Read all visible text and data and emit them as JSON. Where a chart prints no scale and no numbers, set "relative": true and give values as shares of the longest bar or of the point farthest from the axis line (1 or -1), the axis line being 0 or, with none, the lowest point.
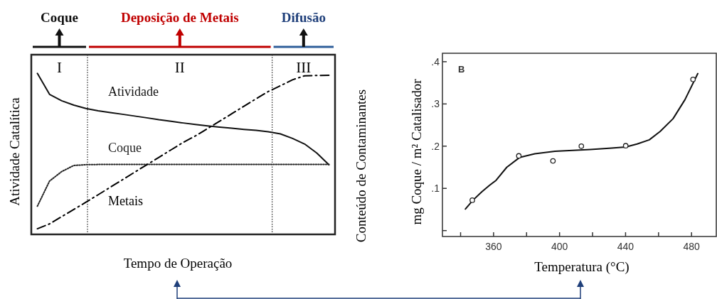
{
  "chart_data": [
    {
      "type": "line",
      "relative": true,
      "xlabel": "Tempo de Operação",
      "ylabel": "Atividade Catalítica",
      "y2label": "Conteúdo de Contaminantes",
      "annotations": [
        "Coque",
        "Deposição de Metais",
        "Difusão",
        "I",
        "II",
        "III"
      ],
      "categories": [
        null,
        null,
        null,
        null,
        null,
        null,
        null,
        null,
        null,
        null,
        null,
        null,
        null,
        null,
        null,
        null,
        null,
        null,
        null,
        null,
        null,
        null,
        null,
        null,
        null
      ],
      "series": [
        {
          "name": "Atividade",
          "color": "#111111",
          "line_style": "solid",
          "values": [
            1.0,
            0.87,
            0.83,
            0.803,
            0.782,
            0.768,
            0.757,
            0.746,
            0.735,
            0.724,
            0.712,
            0.702,
            0.692,
            0.683,
            0.674,
            0.666,
            0.659,
            0.652,
            0.646,
            0.637,
            0.624,
            0.596,
            0.561,
            0.505,
            0.432
          ]
        },
        {
          "name": "Coque",
          "color": "#222222",
          "line_style": "dotted",
          "values": [
            0.175,
            0.331,
            0.39,
            0.428,
            0.433,
            0.434,
            0.434,
            0.434,
            0.434,
            0.434,
            0.434,
            0.434,
            0.434,
            0.434,
            0.434,
            0.434,
            0.434,
            0.434,
            0.434,
            0.434,
            0.434,
            0.434,
            0.434,
            0.434,
            0.434
          ]
        },
        {
          "name": "Metais",
          "color": "#000000",
          "line_style": "dashed",
          "values": [
            0.035,
            0.065,
            0.11,
            0.155,
            0.2,
            0.246,
            0.293,
            0.339,
            0.386,
            0.432,
            0.478,
            0.525,
            0.571,
            0.611,
            0.657,
            0.703,
            0.749,
            0.796,
            0.842,
            0.887,
            0.923,
            0.96,
            0.985,
            0.987,
            0.988
          ]
        }
      ]
    },
    {
      "type": "scatter",
      "xlim": [
        329,
        495
      ],
      "ylim": [
        -0.014,
        0.42
      ],
      "xlabel": "Temperatura (°C)",
      "ylabel": "mg Coque / m² Catalisador",
      "annotations": [
        "B"
      ],
      "xticks": [
        {
          "value": 340,
          "label": null
        },
        360,
        {
          "value": 380,
          "label": null
        },
        400,
        {
          "value": 420,
          "label": null
        },
        440,
        {
          "value": 460,
          "label": null
        },
        480
      ],
      "yticks": [
        {
          "value": 0,
          "label": null
        },
        {
          "value": 0.1,
          "label": ".1"
        },
        {
          "value": 0.2,
          "label": ".2"
        },
        {
          "value": 0.3,
          "label": ".3"
        },
        {
          "value": 0.4,
          "label": ".4"
        }
      ],
      "series": [
        {
          "color": "#222222",
          "marker": "circle",
          "x": [
            347.1,
            375.3,
            396,
            413.2,
            440.1,
            480.9
          ],
          "values": [
            0.072,
            0.177,
            0.165,
            0.2,
            0.201,
            0.358
          ]
        },
        {
          "type": "line",
          "color": "#111111",
          "marker": "none",
          "line_style": "solid",
          "x": [
            342.9,
            347.5,
            352.9,
            357.5,
            361.5,
            368,
            375.7,
            385,
            397.2,
            408,
            418.7,
            430,
            440.1,
            447,
            454.4,
            461,
            468.8,
            476,
            483.8
          ],
          "values": [
            0.051,
            0.072,
            0.092,
            0.107,
            0.119,
            0.15,
            0.173,
            0.182,
            0.188,
            0.19,
            0.192,
            0.195,
            0.198,
            0.205,
            0.215,
            0.235,
            0.265,
            0.31,
            0.372
          ]
        }
      ]
    }
  ]
}
